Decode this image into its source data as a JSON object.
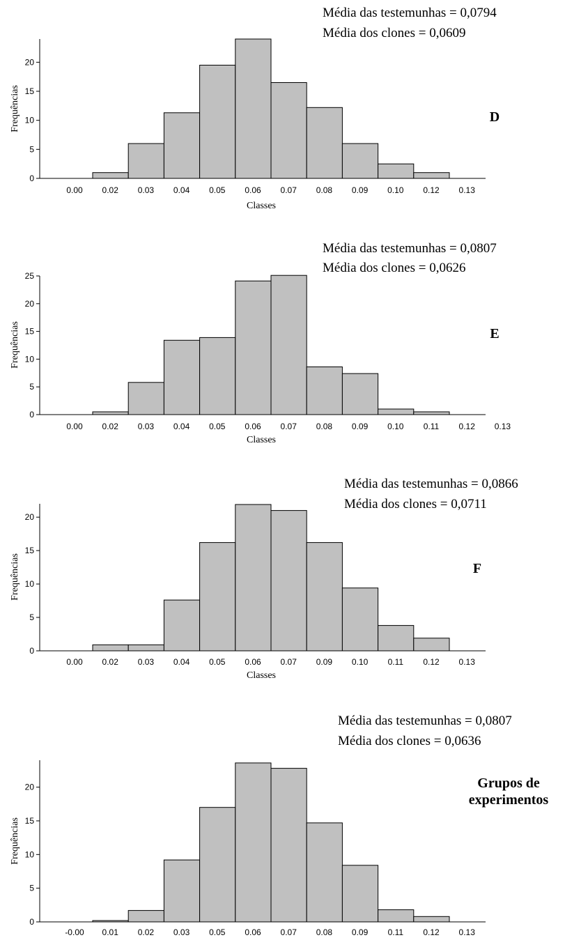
{
  "chart_data": [
    {
      "type": "bar",
      "panel_label": "D",
      "annotations": [
        "Média das testemunhas = 0,0794",
        "Média dos clones = 0,0609"
      ],
      "xlabel": "Classes",
      "ylabel": "Frequências",
      "x_tick_labels": [
        "0.00",
        "0.02",
        "0.03",
        "0.04",
        "0.05",
        "0.06",
        "0.07",
        "0.08",
        "0.09",
        "0.10",
        "0.12",
        "0.13"
      ],
      "y_ticks": [
        0,
        5,
        10,
        15,
        20
      ],
      "ylim": [
        0,
        24
      ],
      "values": [
        1.0,
        6.0,
        11.3,
        19.5,
        24.0,
        16.5,
        12.2,
        6.0,
        2.5,
        1.0
      ],
      "grid": false
    },
    {
      "type": "bar",
      "panel_label": "E",
      "annotations": [
        "Média das testemunhas = 0,0807",
        "Média dos clones = 0,0626"
      ],
      "xlabel": "Classes",
      "ylabel": "Frequências",
      "x_tick_labels": [
        "0.00",
        "0.02",
        "0.03",
        "0.04",
        "0.05",
        "0.06",
        "0.07",
        "0.08",
        "0.09",
        "0.10",
        "0.11",
        "0.12",
        "0.13"
      ],
      "y_ticks": [
        0,
        5,
        10,
        15,
        20,
        25
      ],
      "ylim": [
        0,
        25
      ],
      "values": [
        0.5,
        5.8,
        13.4,
        13.9,
        24.1,
        25.1,
        8.6,
        7.4,
        1.0,
        0.5
      ],
      "grid": false
    },
    {
      "type": "bar",
      "panel_label": "F",
      "annotations": [
        "Média das testemunhas = 0,0866",
        "Média dos clones = 0,0711"
      ],
      "xlabel": "Classes",
      "ylabel": "Frequências",
      "x_tick_labels": [
        "0.00",
        "0.02",
        "0.03",
        "0.04",
        "0.05",
        "0.06",
        "0.07",
        "0.09",
        "0.10",
        "0.11",
        "0.12",
        "0.13"
      ],
      "y_ticks": [
        0,
        5,
        10,
        15,
        20
      ],
      "ylim": [
        0,
        22
      ],
      "values": [
        0.9,
        0.9,
        7.6,
        16.2,
        21.9,
        21.0,
        16.2,
        9.4,
        3.8,
        1.9
      ],
      "grid": false
    },
    {
      "type": "bar",
      "panel_label": "Grupos de experimentos",
      "annotations": [
        "Média das testemunhas = 0,0807",
        "Média dos clones = 0,0636"
      ],
      "xlabel": "Classes",
      "ylabel": "Frequências",
      "x_tick_labels": [
        "-0.00",
        "0.01",
        "0.02",
        "0.03",
        "0.05",
        "0.06",
        "0.07",
        "0.08",
        "0.09",
        "0.11",
        "0.12",
        "0.13"
      ],
      "y_ticks": [
        0,
        5,
        10,
        15,
        20
      ],
      "ylim": [
        0,
        24
      ],
      "values": [
        0.2,
        1.7,
        9.2,
        17.0,
        23.6,
        22.8,
        14.7,
        8.4,
        1.8,
        0.8
      ],
      "grid": false
    }
  ]
}
